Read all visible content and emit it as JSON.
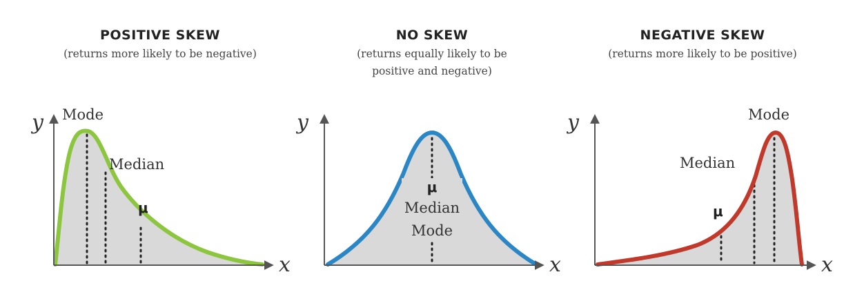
{
  "panels": [
    {
      "id": "positive",
      "title": "POSITIVE SKEW",
      "subtitle_lines": [
        "(returns more likely to be negative)"
      ],
      "y_axis": "y",
      "x_axis": "x",
      "curve_color": "#8cc63f",
      "labels": {
        "mode": "Mode",
        "median": "Median",
        "mean": "μ"
      }
    },
    {
      "id": "none",
      "title": "NO SKEW",
      "subtitle_lines": [
        "(returns equally likely to be",
        "positive and negative)"
      ],
      "y_axis": "y",
      "x_axis": "x",
      "curve_color": "#2b86c5",
      "labels": {
        "mean": "μ",
        "median": "Median",
        "mode": "Mode"
      }
    },
    {
      "id": "negative",
      "title": "NEGATIVE SKEW",
      "subtitle_lines": [
        "(returns more likely to be positive)"
      ],
      "y_axis": "y",
      "x_axis": "x",
      "curve_color": "#c0392b",
      "labels": {
        "mode": "Mode",
        "median": "Median",
        "mean": "μ"
      }
    }
  ]
}
